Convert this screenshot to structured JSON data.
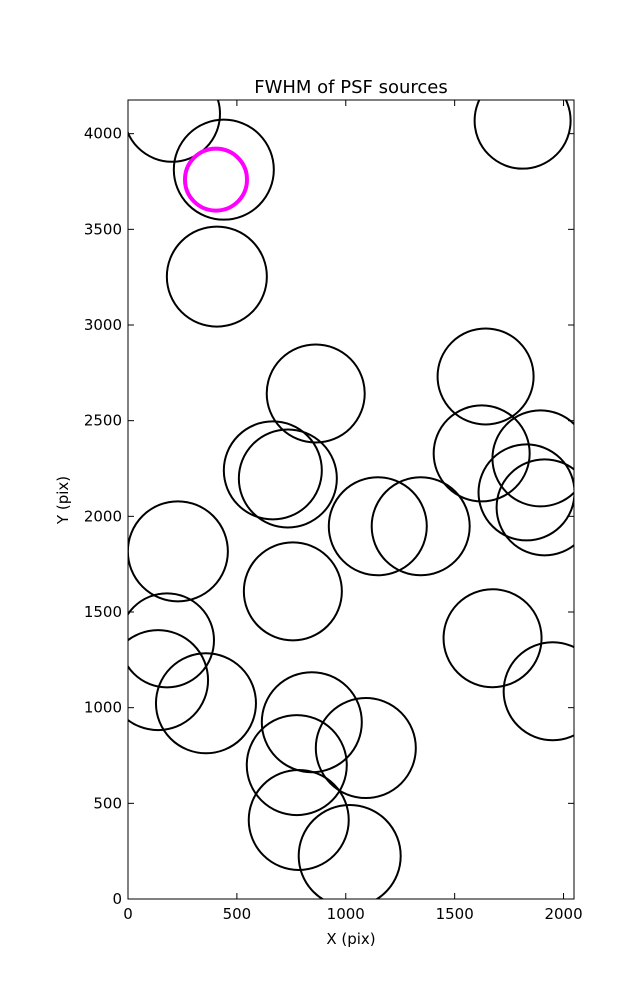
{
  "chart_data": {
    "type": "scatter",
    "title": "FWHM of PSF sources",
    "x_label": "X (pix)",
    "y_label": "Y (pix)",
    "xlim": [
      0,
      2048
    ],
    "ylim": [
      0,
      4176
    ],
    "xticks": [
      0,
      500,
      1000,
      1500,
      2000
    ],
    "yticks": [
      0,
      500,
      1000,
      1500,
      2000,
      2500,
      3000,
      3500,
      4000
    ],
    "grid": false,
    "series": [
      {
        "color": "#000000",
        "linewidth": 2,
        "x": [
          202,
          440,
          1812,
          408,
          862,
          1642,
          665,
          734,
          1624,
          1894,
          1147,
          1344,
          1830,
          1913,
          229,
          757,
          179,
          138,
          358,
          1674,
          1950,
          844,
          1092,
          775,
          784,
          1018
        ],
        "y": [
          4104,
          3812,
          4068,
          3253,
          2642,
          2731,
          2240,
          2198,
          2329,
          2303,
          1948,
          1948,
          2125,
          2047,
          1817,
          1608,
          1352,
          1144,
          1023,
          1363,
          1086,
          924,
          789,
          700,
          413,
          225
        ],
        "sizes": [
          48,
          50,
          48,
          50,
          49,
          48,
          49,
          49,
          48,
          48,
          49,
          49,
          48,
          48,
          50,
          49,
          47,
          50,
          50,
          49,
          49,
          50,
          50,
          50,
          50,
          51
        ]
      },
      {
        "color": "#ff00ff",
        "linewidth": 4,
        "x": [
          404
        ],
        "y": [
          3760
        ],
        "sizes": [
          31
        ]
      }
    ]
  }
}
